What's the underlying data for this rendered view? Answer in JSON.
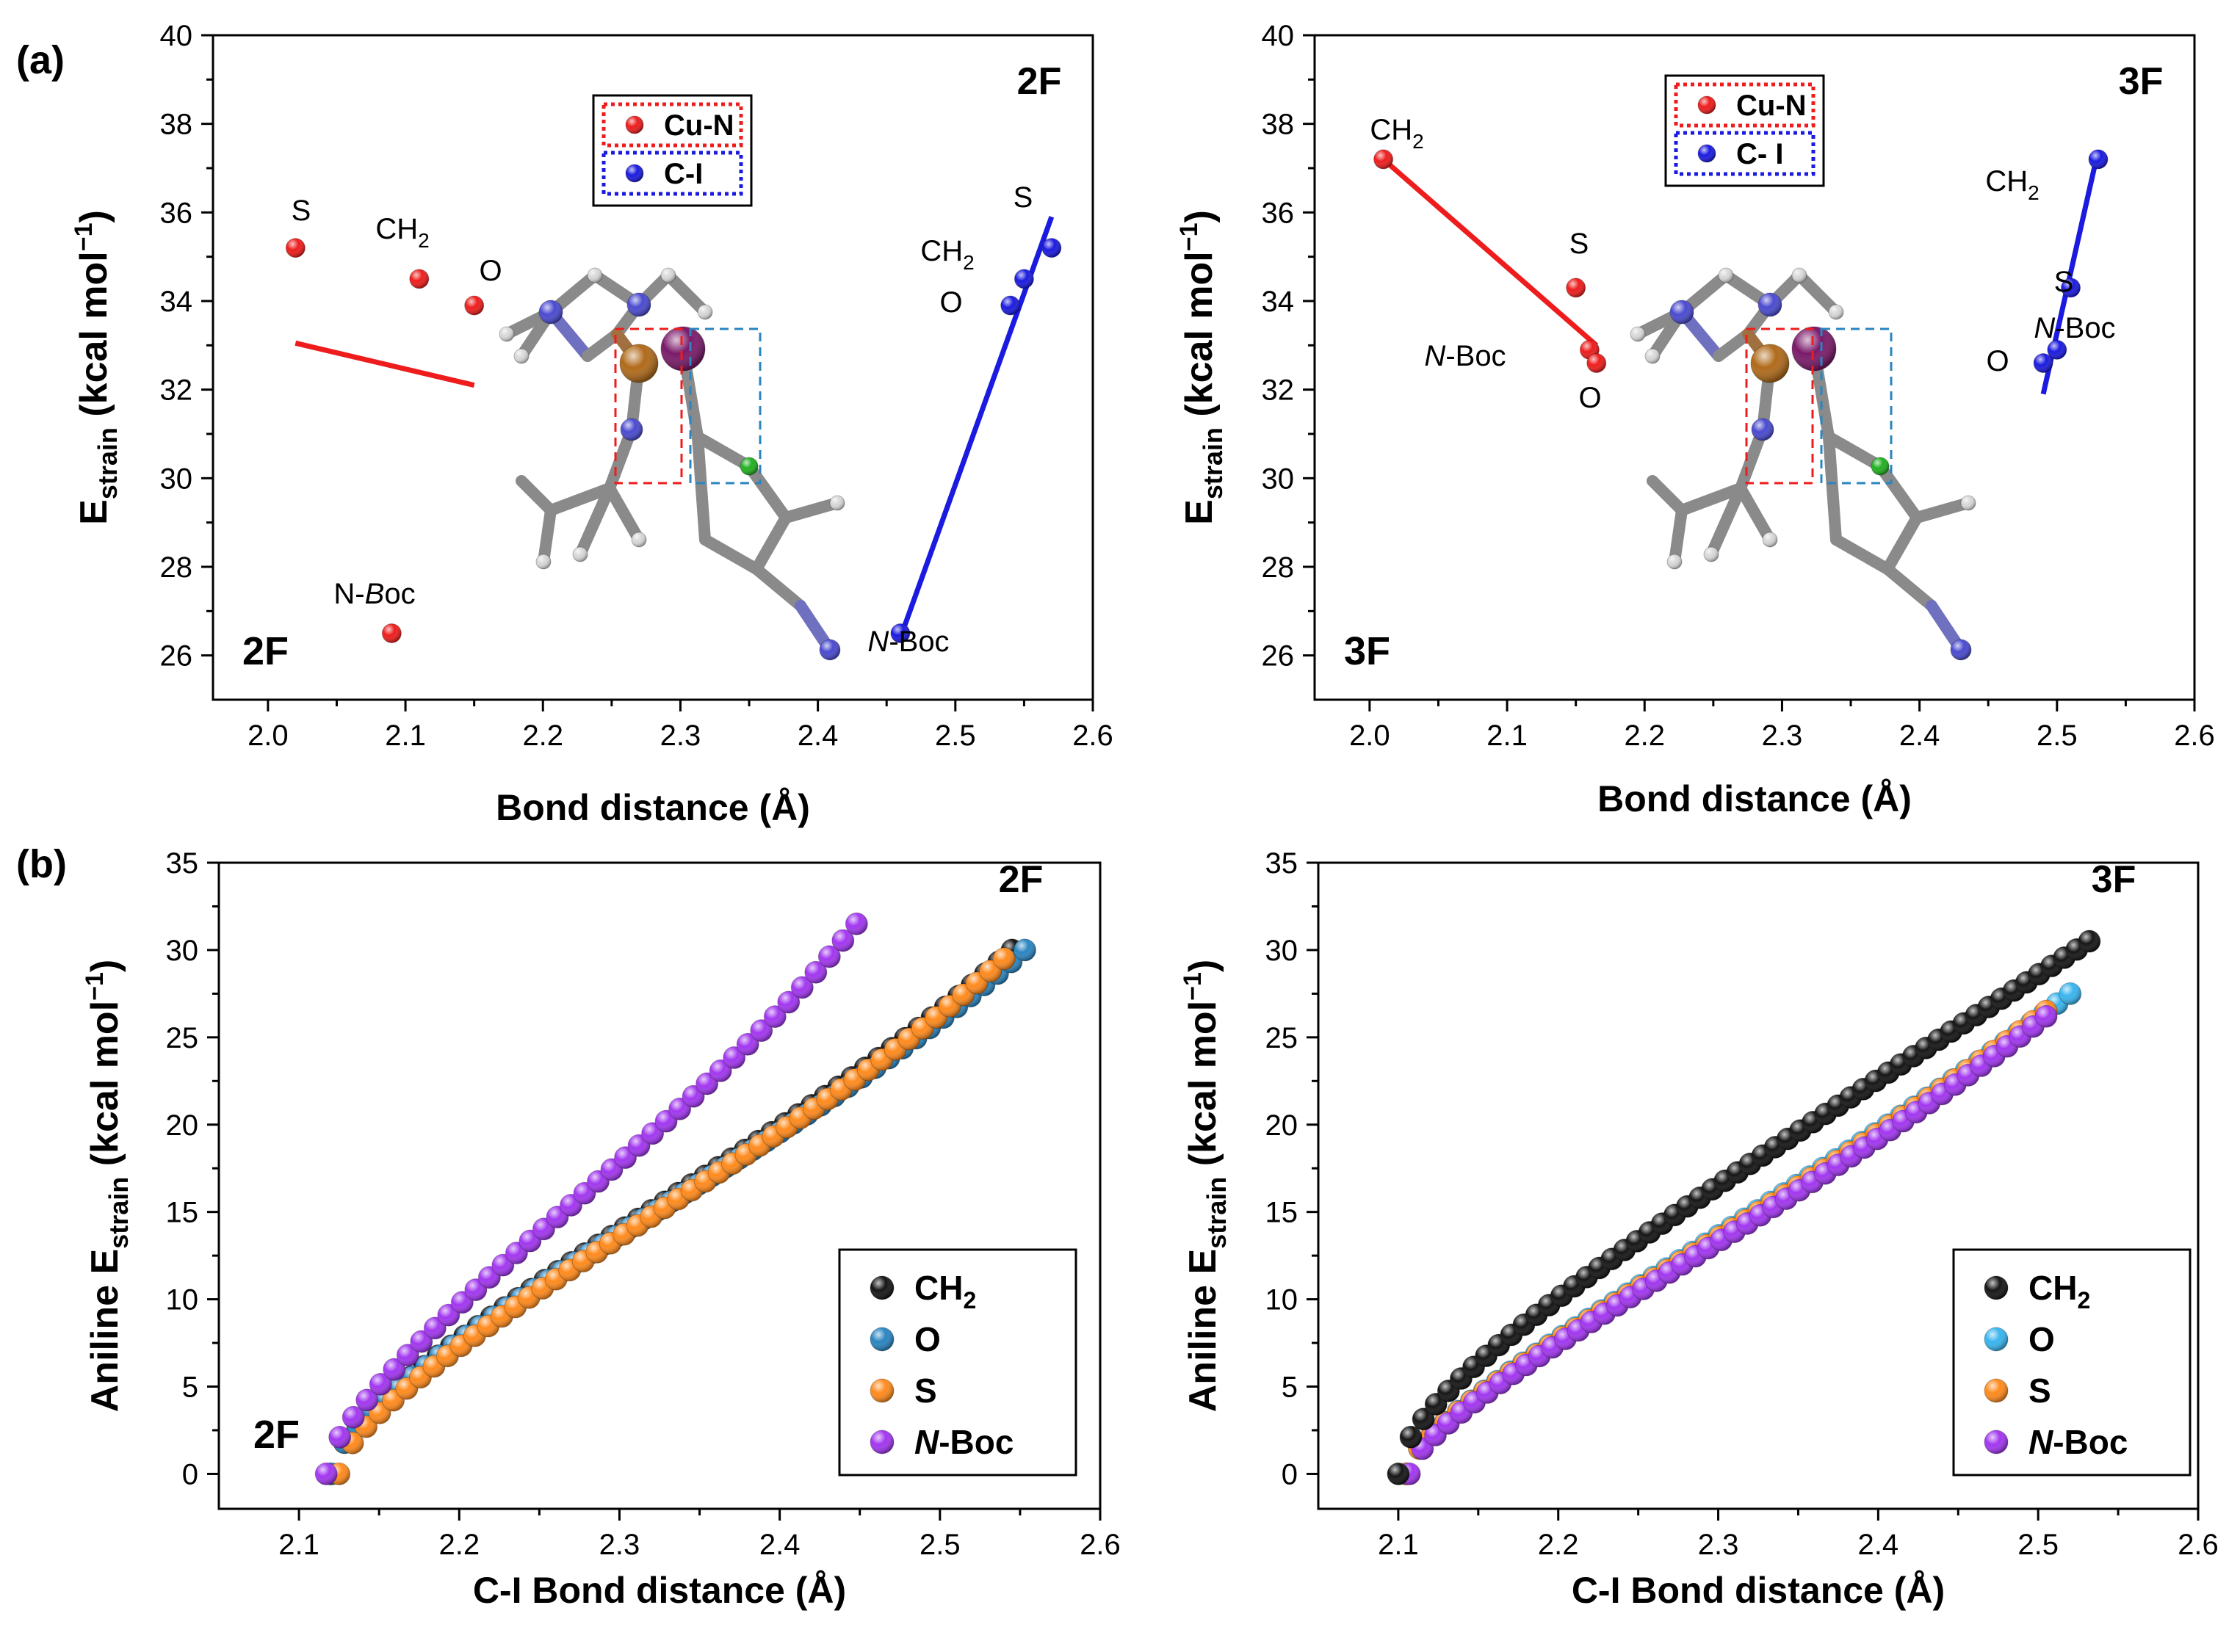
{
  "panel_labels": {
    "a": "(a)",
    "b": "(b)"
  },
  "colors": {
    "cu_n": "#ee1c1c",
    "c_i": "#1a1ae0",
    "ch2": "#151515",
    "o_2f": "#2a85c0",
    "o_3f": "#38b4ee",
    "s": "#ff8a1c",
    "nboc": "#a236f0"
  },
  "chart_data": [
    {
      "type": "scatter",
      "id": "a-2F",
      "title": "2F",
      "corner_label": "2F",
      "xlabel": "Bond distance (Å)",
      "ylabel_main": "E",
      "ylabel_sub": "strain",
      "ylabel_unit": "(kcal mol",
      "ylabel_sup": "−1",
      "ylabel_close": ")",
      "xlim": [
        1.96,
        2.6
      ],
      "ylim": [
        25,
        40
      ],
      "xticks": [
        "2.0",
        "2.1",
        "2.2",
        "2.3",
        "2.4",
        "2.5",
        "2.6"
      ],
      "xtick_values": [
        2.0,
        2.1,
        2.2,
        2.3,
        2.4,
        2.5,
        2.6
      ],
      "yticks": [
        "26",
        "28",
        "30",
        "32",
        "34",
        "36",
        "38",
        "40"
      ],
      "ytick_values": [
        26,
        28,
        30,
        32,
        34,
        36,
        38,
        40
      ],
      "legend": [
        {
          "label": "Cu-N",
          "color_key": "cu_n"
        },
        {
          "label": "C-I",
          "color_key": "c_i"
        }
      ],
      "series": [
        {
          "name": "Cu-N",
          "color_key": "cu_n",
          "points": [
            {
              "label": "S",
              "x": 2.02,
              "y": 35.2
            },
            {
              "label": "CH",
              "sub": "2",
              "x": 2.11,
              "y": 34.5
            },
            {
              "label": "O",
              "x": 2.15,
              "y": 33.9
            },
            {
              "label": "N-",
              "label_italic": "B",
              "label_tail": "oc",
              "x": 2.09,
              "y": 26.5
            }
          ],
          "fit": [
            [
              2.02,
              33.05
            ],
            [
              2.15,
              32.1
            ]
          ]
        },
        {
          "name": "C-I",
          "color_key": "c_i",
          "points": [
            {
              "label": "N",
              "label_italic_first": true,
              "label_tail": "-Boc",
              "x": 2.46,
              "y": 26.5
            },
            {
              "label": "O",
              "x": 2.54,
              "y": 33.9
            },
            {
              "label": "CH",
              "sub": "2",
              "x": 2.55,
              "y": 34.5
            },
            {
              "label": "S",
              "x": 2.57,
              "y": 35.2
            }
          ],
          "fit": [
            [
              2.46,
              26.4
            ],
            [
              2.57,
              35.9
            ]
          ]
        }
      ]
    },
    {
      "type": "scatter",
      "id": "a-3F",
      "title": "3F",
      "corner_label": "3F",
      "xlabel": "Bond distance (Å)",
      "ylabel_main": "E",
      "ylabel_sub": "strain",
      "ylabel_unit": "(kcal mol",
      "ylabel_sup": "−1",
      "ylabel_close": ")",
      "xlim": [
        1.96,
        2.6
      ],
      "ylim": [
        25,
        40
      ],
      "xticks": [
        "2.0",
        "2.1",
        "2.2",
        "2.3",
        "2.4",
        "2.5",
        "2.6"
      ],
      "xtick_values": [
        2.0,
        2.1,
        2.2,
        2.3,
        2.4,
        2.5,
        2.6
      ],
      "yticks": [
        "26",
        "28",
        "30",
        "32",
        "34",
        "36",
        "38",
        "40"
      ],
      "ytick_values": [
        26,
        28,
        30,
        32,
        34,
        36,
        38,
        40
      ],
      "legend": [
        {
          "label": "Cu-N",
          "color_key": "cu_n"
        },
        {
          "label": "C- I",
          "color_key": "c_i"
        }
      ],
      "series": [
        {
          "name": "Cu-N",
          "color_key": "cu_n",
          "points": [
            {
              "label": "CH",
              "sub": "2",
              "x": 2.01,
              "y": 37.2
            },
            {
              "label": "S",
              "x": 2.15,
              "y": 34.3
            },
            {
              "label": "N",
              "label_italic_first": true,
              "label_tail": "-Boc",
              "x": 2.16,
              "y": 32.9
            },
            {
              "label": "O",
              "x": 2.165,
              "y": 32.6
            }
          ],
          "fit": [
            [
              2.01,
              37.2
            ],
            [
              2.165,
              33.0
            ]
          ]
        },
        {
          "name": "C-I",
          "color_key": "c_i",
          "points": [
            {
              "label": "O",
              "x": 2.49,
              "y": 32.6
            },
            {
              "label": "N",
              "label_italic_first": true,
              "label_tail": "-Boc",
              "x": 2.5,
              "y": 32.9
            },
            {
              "label": "S",
              "x": 2.51,
              "y": 34.3
            },
            {
              "label": "CH",
              "sub": "2",
              "x": 2.53,
              "y": 37.2
            }
          ],
          "fit": [
            [
              2.49,
              31.9
            ],
            [
              2.53,
              37.4
            ]
          ]
        }
      ]
    },
    {
      "type": "scatter",
      "id": "b-2F",
      "title": "2F",
      "corner_label": "2F",
      "xlabel": "C-I Bond distance  (Å)",
      "ylabel_main": "Aniline E",
      "ylabel_sub": "strain",
      "ylabel_unit": "(kcal mol",
      "ylabel_sup": "−1",
      "ylabel_close": ")",
      "xlim": [
        2.05,
        2.6
      ],
      "ylim": [
        -2,
        35
      ],
      "xticks": [
        "2.1",
        "2.2",
        "2.3",
        "2.4",
        "2.5",
        "2.6"
      ],
      "xtick_values": [
        2.1,
        2.2,
        2.3,
        2.4,
        2.5,
        2.6
      ],
      "yticks": [
        "0",
        "5",
        "10",
        "15",
        "20",
        "25",
        "30",
        "35"
      ],
      "ytick_values": [
        0,
        5,
        10,
        15,
        20,
        25,
        30,
        35
      ],
      "legend": [
        {
          "label": "CH",
          "sub": "2",
          "color_key": "ch2"
        },
        {
          "label": "O",
          "color_key": "o_2f"
        },
        {
          "label": "S",
          "color_key": "s"
        },
        {
          "label": "N",
          "label_italic_first": true,
          "label_tail": "-Boc",
          "color_key": "nboc"
        }
      ],
      "curves": [
        {
          "name": "CH2",
          "color_key": "ch2",
          "x_start": 2.12,
          "x_end": 2.545,
          "n": 52,
          "a": 30,
          "b": 0.35,
          "p": 4.6
        },
        {
          "name": "O",
          "color_key": "o_2f",
          "x_start": 2.12,
          "x_end": 2.553,
          "n": 52,
          "a": 30,
          "b": 0.35,
          "p": 4.6
        },
        {
          "name": "S",
          "color_key": "s",
          "x_start": 2.125,
          "x_end": 2.54,
          "n": 50,
          "a": 29.5,
          "b": 0.34,
          "p": 4.6
        },
        {
          "name": "N-Boc",
          "color_key": "nboc",
          "x_start": 2.117,
          "x_end": 2.448,
          "n": 40,
          "a": 31.5,
          "b": 0.325,
          "p": 4.6
        }
      ]
    },
    {
      "type": "scatter",
      "id": "b-3F",
      "title": "3F",
      "corner_label": "",
      "xlabel": "C-I Bond distance  (Å)",
      "ylabel_main": "Aniline E",
      "ylabel_sub": "strain",
      "ylabel_unit": "(kcal mol",
      "ylabel_sup": "−1",
      "ylabel_close": ")",
      "xlim": [
        2.05,
        2.6
      ],
      "ylim": [
        -2,
        35
      ],
      "xticks": [
        "2.1",
        "2.2",
        "2.3",
        "2.4",
        "2.5",
        "2.6"
      ],
      "xtick_values": [
        2.1,
        2.2,
        2.3,
        2.4,
        2.5,
        2.6
      ],
      "yticks": [
        "0",
        "5",
        "10",
        "15",
        "20",
        "25",
        "30",
        "35"
      ],
      "ytick_values": [
        0,
        5,
        10,
        15,
        20,
        25,
        30,
        35
      ],
      "legend": [
        {
          "label": "CH",
          "sub": "2",
          "color_key": "ch2"
        },
        {
          "label": "O",
          "color_key": "o_3f"
        },
        {
          "label": "S",
          "color_key": "s"
        },
        {
          "label": "N",
          "label_italic_first": true,
          "label_tail": "-Boc",
          "color_key": "nboc"
        }
      ],
      "curves": [
        {
          "name": "O",
          "color_key": "o_3f",
          "x_start": 2.105,
          "x_end": 2.52,
          "n": 52,
          "a": 27.5,
          "b": 0.3,
          "p": 3.0
        },
        {
          "name": "S",
          "color_key": "s",
          "x_start": 2.105,
          "x_end": 2.505,
          "n": 50,
          "a": 26.5,
          "b": 0.3,
          "p": 3.2
        },
        {
          "name": "N-Boc",
          "color_key": "nboc",
          "x_start": 2.107,
          "x_end": 2.505,
          "n": 50,
          "a": 26.2,
          "b": 0.3,
          "p": 3.3
        },
        {
          "name": "CH2",
          "color_key": "ch2",
          "x_start": 2.1,
          "x_end": 2.532,
          "n": 56,
          "a": 30.5,
          "b": 0.45,
          "p": 1.9
        }
      ]
    }
  ]
}
